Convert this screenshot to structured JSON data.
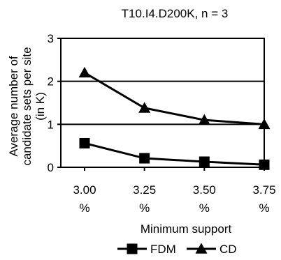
{
  "chart_data": {
    "type": "line",
    "title": "T10.I4.D200K, n = 3",
    "xlabel": "Minimum support",
    "ylabel": "Average number of candidate sets per site (in K)",
    "categories": [
      "3.00 %",
      "3.25 %",
      "3.50 %",
      "3.75 %"
    ],
    "ylim": [
      0,
      3
    ],
    "yticks": [
      "0",
      "1",
      "2",
      "3"
    ],
    "grid": "horizontal",
    "legend_position": "bottom",
    "series": [
      {
        "name": "FDM",
        "marker": "square",
        "values": [
          0.56,
          0.21,
          0.13,
          0.06
        ],
        "color": "#000000"
      },
      {
        "name": "CD",
        "marker": "triangle",
        "values": [
          2.2,
          1.38,
          1.1,
          1.0
        ],
        "color": "#000000"
      }
    ]
  }
}
